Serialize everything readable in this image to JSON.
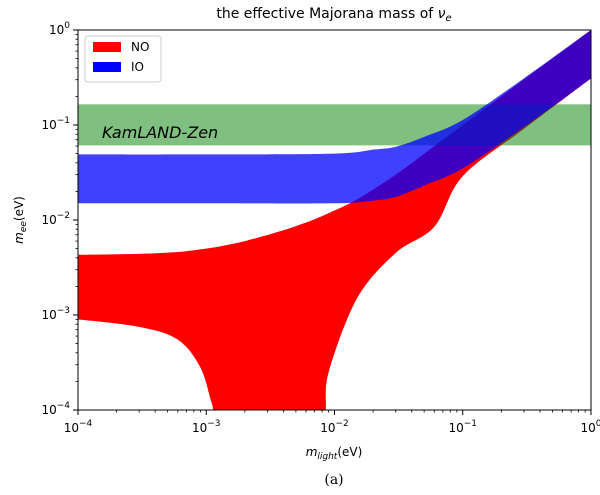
{
  "chart_data": {
    "type": "area",
    "title_text": "the effective Majorana mass of ",
    "title_symbol": "ν",
    "title_subscript": "e",
    "xlabel_symbol": "m",
    "xlabel_subscript": "light",
    "xlabel_unit": "(eV)",
    "ylabel_symbol": "m",
    "ylabel_subscript": "ee",
    "ylabel_unit": "(eV)",
    "xscale": "log",
    "yscale": "log",
    "xlim": [
      0.0001,
      1
    ],
    "ylim": [
      0.0001,
      1
    ],
    "x_ticks": [
      {
        "value": 0.0001,
        "base": "10",
        "exp": "−4"
      },
      {
        "value": 0.001,
        "base": "10",
        "exp": "−3"
      },
      {
        "value": 0.01,
        "base": "10",
        "exp": "−2"
      },
      {
        "value": 0.1,
        "base": "10",
        "exp": "−1"
      },
      {
        "value": 1,
        "base": "10",
        "exp": "0"
      }
    ],
    "y_ticks": [
      {
        "value": 0.0001,
        "base": "10",
        "exp": "−4"
      },
      {
        "value": 0.001,
        "base": "10",
        "exp": "−3"
      },
      {
        "value": 0.01,
        "base": "10",
        "exp": "−2"
      },
      {
        "value": 0.1,
        "base": "10",
        "exp": "−1"
      },
      {
        "value": 1,
        "base": "10",
        "exp": "0"
      }
    ],
    "legend_position": "top-left",
    "series": [
      {
        "name": "NO",
        "color": "#ff0000",
        "x": [
          0.0001,
          0.0003,
          0.0006,
          0.0009,
          0.0011,
          0.0012,
          0.002,
          0.004,
          0.006,
          0.0075,
          0.0085,
          0.009,
          0.015,
          0.03,
          0.06,
          0.1,
          0.3,
          1
        ],
        "upper": [
          0.0043,
          0.0044,
          0.0046,
          0.0049,
          0.0051,
          0.0052,
          0.006,
          0.0078,
          0.0094,
          0.0106,
          0.0114,
          0.0118,
          0.0165,
          0.03,
          0.06,
          0.1,
          0.3,
          1
        ],
        "lower": [
          0.0009,
          0.00075,
          0.00055,
          0.00028,
          0.00012,
          0.0001,
          0.0001,
          0.0001,
          0.0001,
          0.0001,
          0.0001,
          0.00025,
          0.0015,
          0.0045,
          0.0085,
          0.029,
          0.091,
          0.31
        ]
      },
      {
        "name": "IO",
        "color": "#0000ff",
        "x": [
          0.0001,
          0.001,
          0.01,
          0.02,
          0.03,
          0.05,
          0.1,
          0.3,
          1
        ],
        "upper": [
          0.049,
          0.049,
          0.05,
          0.055,
          0.059,
          0.075,
          0.113,
          0.31,
          1
        ],
        "lower": [
          0.015,
          0.015,
          0.015,
          0.016,
          0.0175,
          0.023,
          0.035,
          0.095,
          0.31
        ]
      }
    ],
    "horizontal_band": {
      "name": "KamLAND-Zen",
      "ymin": 0.061,
      "ymax": 0.165,
      "color": "#008000"
    },
    "band_label": "KamLAND-Zen",
    "caption": "(a)"
  }
}
